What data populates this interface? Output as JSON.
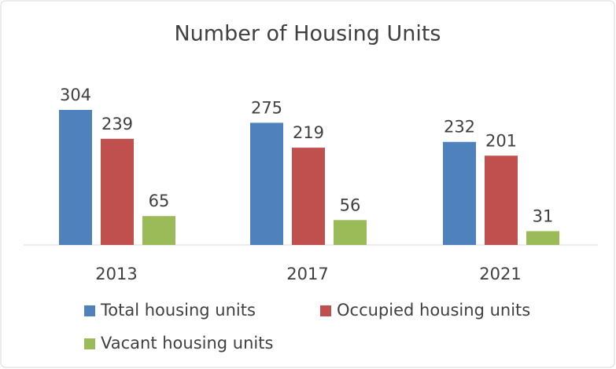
{
  "chart_data": {
    "type": "bar",
    "title": "Number of Housing Units",
    "categories": [
      "2013",
      "2017",
      "2021"
    ],
    "series": [
      {
        "name": "Total housing units",
        "color": "#4f81bd",
        "values": [
          304,
          275,
          232
        ]
      },
      {
        "name": "Occupied housing units",
        "color": "#c0504d",
        "values": [
          239,
          219,
          201
        ]
      },
      {
        "name": "Vacant housing units",
        "color": "#9bbb59",
        "values": [
          65,
          56,
          31
        ]
      }
    ],
    "data_labels": true,
    "legend": "bottom"
  }
}
